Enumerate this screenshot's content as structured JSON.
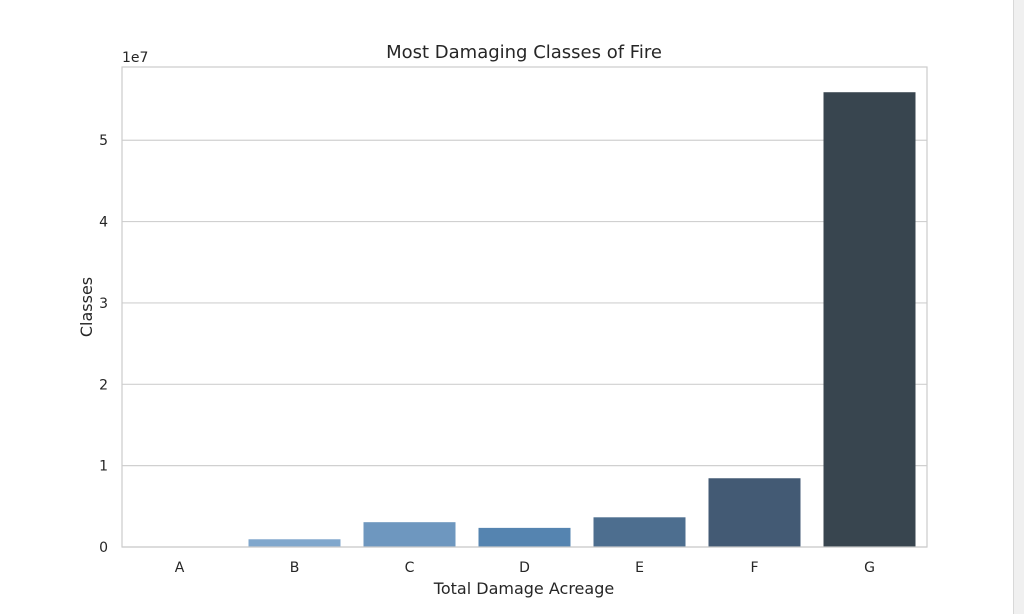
{
  "chart_data": {
    "type": "bar",
    "title": "Most Damaging Classes of Fire",
    "xlabel": "Total Damage Acreage",
    "ylabel": "Classes",
    "offset_label": "1e7",
    "categories": [
      "A",
      "B",
      "C",
      "D",
      "E",
      "F",
      "G"
    ],
    "values": [
      8000,
      950000,
      3050000,
      2350000,
      3650000,
      8450000,
      55900000
    ],
    "colors": [
      "#8fb0cf",
      "#80a7cc",
      "#6e97bf",
      "#5584b0",
      "#4d6e8f",
      "#435a74",
      "#38454f"
    ],
    "ylim": [
      0,
      59000000
    ],
    "yticks": [
      0,
      10000000,
      20000000,
      30000000,
      40000000,
      50000000
    ],
    "ytick_labels": [
      "0",
      "1",
      "2",
      "3",
      "4",
      "5"
    ],
    "grid": true
  }
}
